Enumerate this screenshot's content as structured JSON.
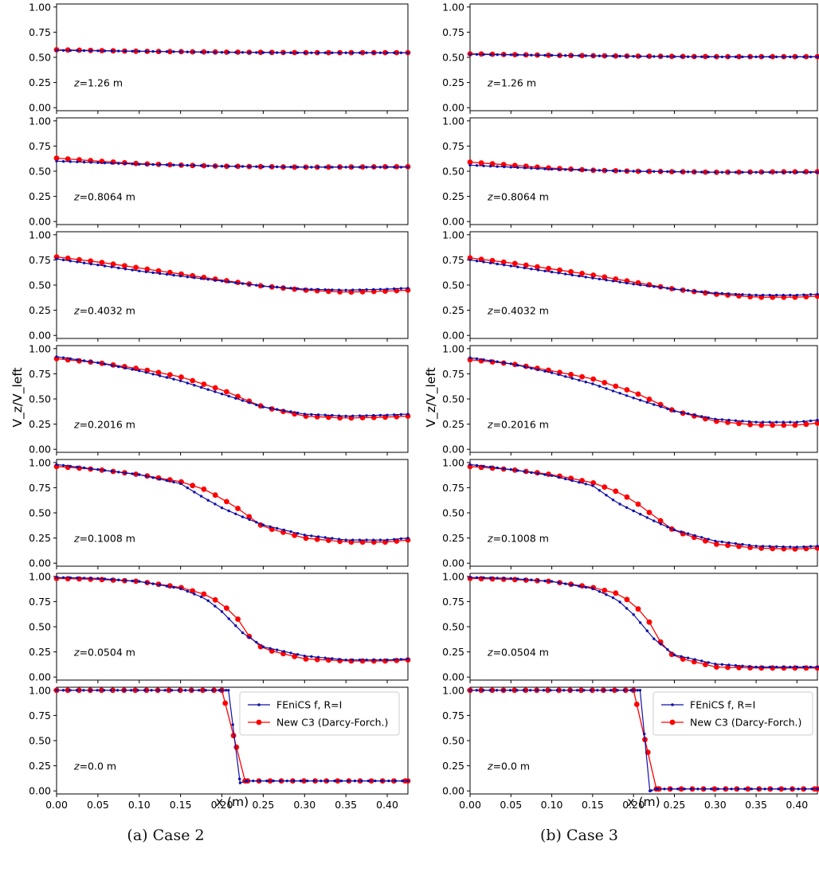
{
  "figure": {
    "ylabel": "V_z/V_left",
    "xlabel": "x (m)",
    "y_ticks": [
      "0.00",
      "0.25",
      "0.50",
      "0.75",
      "1.00"
    ],
    "x_ticks": [
      "0.00",
      "0.05",
      "0.10",
      "0.15",
      "0.20",
      "0.25",
      "0.30",
      "0.35",
      "0.40"
    ],
    "legend": [
      "FEniCS f, R=I",
      "New C3 (Darcy-Forch.)"
    ],
    "colors": {
      "fenics": "#1010a8",
      "c3": "#ff0000"
    }
  },
  "captions": {
    "a": "(a) Case 2",
    "b": "(b) Case 3"
  },
  "chart_data": [
    {
      "type": "line",
      "case": "(a) Case 2",
      "xlabel": "x (m)",
      "ylabel": "V_z/V_left",
      "xlim": [
        0,
        0.425
      ],
      "ylim": [
        -0.03,
        1.03
      ],
      "legend_position": "upper-right (bottom panel)",
      "panels": [
        {
          "label": "z=1.26 m",
          "fenics": [
            [
              0,
              0.57
            ],
            [
              0.1,
              0.56
            ],
            [
              0.2,
              0.55
            ],
            [
              0.3,
              0.545
            ],
            [
              0.425,
              0.545
            ]
          ],
          "c3": [
            [
              0,
              0.575
            ],
            [
              0.1,
              0.56
            ],
            [
              0.2,
              0.552
            ],
            [
              0.3,
              0.547
            ],
            [
              0.425,
              0.547
            ]
          ]
        },
        {
          "label": "z=0.8064 m",
          "fenics": [
            [
              0,
              0.6
            ],
            [
              0.05,
              0.585
            ],
            [
              0.1,
              0.57
            ],
            [
              0.15,
              0.56
            ],
            [
              0.2,
              0.55
            ],
            [
              0.3,
              0.54
            ],
            [
              0.425,
              0.54
            ]
          ],
          "c3": [
            [
              0,
              0.63
            ],
            [
              0.05,
              0.6
            ],
            [
              0.1,
              0.575
            ],
            [
              0.15,
              0.56
            ],
            [
              0.2,
              0.55
            ],
            [
              0.3,
              0.54
            ],
            [
              0.425,
              0.545
            ]
          ]
        },
        {
          "label": "z=0.4032 m",
          "fenics": [
            [
              0,
              0.76
            ],
            [
              0.05,
              0.7
            ],
            [
              0.1,
              0.64
            ],
            [
              0.15,
              0.59
            ],
            [
              0.2,
              0.54
            ],
            [
              0.25,
              0.49
            ],
            [
              0.3,
              0.46
            ],
            [
              0.35,
              0.45
            ],
            [
              0.4,
              0.46
            ],
            [
              0.425,
              0.47
            ]
          ],
          "c3": [
            [
              0,
              0.78
            ],
            [
              0.05,
              0.73
            ],
            [
              0.1,
              0.67
            ],
            [
              0.15,
              0.61
            ],
            [
              0.2,
              0.55
            ],
            [
              0.25,
              0.49
            ],
            [
              0.3,
              0.45
            ],
            [
              0.35,
              0.43
            ],
            [
              0.4,
              0.44
            ],
            [
              0.425,
              0.45
            ]
          ]
        },
        {
          "label": "z=0.2016 m",
          "fenics": [
            [
              0,
              0.92
            ],
            [
              0.05,
              0.86
            ],
            [
              0.1,
              0.78
            ],
            [
              0.15,
              0.68
            ],
            [
              0.2,
              0.55
            ],
            [
              0.25,
              0.42
            ],
            [
              0.3,
              0.35
            ],
            [
              0.35,
              0.33
            ],
            [
              0.4,
              0.34
            ],
            [
              0.425,
              0.35
            ]
          ],
          "c3": [
            [
              0,
              0.9
            ],
            [
              0.05,
              0.86
            ],
            [
              0.1,
              0.8
            ],
            [
              0.15,
              0.72
            ],
            [
              0.2,
              0.59
            ],
            [
              0.25,
              0.42
            ],
            [
              0.3,
              0.33
            ],
            [
              0.35,
              0.31
            ],
            [
              0.4,
              0.32
            ],
            [
              0.425,
              0.33
            ]
          ]
        },
        {
          "label": "z=0.1008 m",
          "fenics": [
            [
              0,
              0.98
            ],
            [
              0.05,
              0.93
            ],
            [
              0.1,
              0.88
            ],
            [
              0.15,
              0.79
            ],
            [
              0.18,
              0.64
            ],
            [
              0.2,
              0.55
            ],
            [
              0.225,
              0.46
            ],
            [
              0.25,
              0.38
            ],
            [
              0.3,
              0.28
            ],
            [
              0.35,
              0.23
            ],
            [
              0.4,
              0.23
            ],
            [
              0.425,
              0.25
            ]
          ],
          "c3": [
            [
              0,
              0.96
            ],
            [
              0.05,
              0.93
            ],
            [
              0.1,
              0.88
            ],
            [
              0.15,
              0.81
            ],
            [
              0.18,
              0.73
            ],
            [
              0.2,
              0.64
            ],
            [
              0.22,
              0.54
            ],
            [
              0.25,
              0.36
            ],
            [
              0.3,
              0.25
            ],
            [
              0.35,
              0.21
            ],
            [
              0.4,
              0.21
            ],
            [
              0.425,
              0.23
            ]
          ]
        },
        {
          "label": "z=0.0504 m",
          "fenics": [
            [
              0,
              0.99
            ],
            [
              0.05,
              0.98
            ],
            [
              0.1,
              0.95
            ],
            [
              0.15,
              0.88
            ],
            [
              0.18,
              0.78
            ],
            [
              0.2,
              0.65
            ],
            [
              0.225,
              0.44
            ],
            [
              0.25,
              0.3
            ],
            [
              0.3,
              0.21
            ],
            [
              0.35,
              0.17
            ],
            [
              0.4,
              0.17
            ],
            [
              0.425,
              0.18
            ]
          ],
          "c3": [
            [
              0,
              0.98
            ],
            [
              0.05,
              0.97
            ],
            [
              0.1,
              0.95
            ],
            [
              0.15,
              0.89
            ],
            [
              0.18,
              0.82
            ],
            [
              0.2,
              0.73
            ],
            [
              0.22,
              0.57
            ],
            [
              0.235,
              0.38
            ],
            [
              0.25,
              0.28
            ],
            [
              0.3,
              0.18
            ],
            [
              0.35,
              0.16
            ],
            [
              0.4,
              0.16
            ],
            [
              0.425,
              0.17
            ]
          ]
        },
        {
          "label": "z=0.0 m",
          "fenics": [
            [
              0,
              1.0
            ],
            [
              0.2,
              1.0
            ],
            [
              0.208,
              1.0
            ],
            [
              0.222,
              0.08
            ],
            [
              0.23,
              0.1
            ],
            [
              0.425,
              0.1
            ]
          ],
          "c3": [
            [
              0,
              1.0
            ],
            [
              0.2,
              1.0
            ],
            [
              0.214,
              0.55
            ],
            [
              0.228,
              0.1
            ],
            [
              0.425,
              0.1
            ]
          ]
        }
      ]
    },
    {
      "type": "line",
      "case": "(b) Case 3",
      "xlabel": "x (m)",
      "ylabel": "V_z/V_left",
      "xlim": [
        0,
        0.425
      ],
      "ylim": [
        -0.03,
        1.03
      ],
      "legend_position": "upper-right (bottom panel)",
      "panels": [
        {
          "label": "z=1.26 m",
          "fenics": [
            [
              0,
              0.53
            ],
            [
              0.1,
              0.52
            ],
            [
              0.2,
              0.51
            ],
            [
              0.3,
              0.505
            ],
            [
              0.425,
              0.505
            ]
          ],
          "c3": [
            [
              0,
              0.535
            ],
            [
              0.1,
              0.52
            ],
            [
              0.2,
              0.512
            ],
            [
              0.3,
              0.507
            ],
            [
              0.425,
              0.507
            ]
          ]
        },
        {
          "label": "z=0.8064 m",
          "fenics": [
            [
              0,
              0.56
            ],
            [
              0.05,
              0.54
            ],
            [
              0.1,
              0.52
            ],
            [
              0.15,
              0.51
            ],
            [
              0.2,
              0.5
            ],
            [
              0.3,
              0.49
            ],
            [
              0.425,
              0.49
            ]
          ],
          "c3": [
            [
              0,
              0.59
            ],
            [
              0.05,
              0.56
            ],
            [
              0.1,
              0.53
            ],
            [
              0.15,
              0.51
            ],
            [
              0.2,
              0.5
            ],
            [
              0.3,
              0.49
            ],
            [
              0.425,
              0.495
            ]
          ]
        },
        {
          "label": "z=0.4032 m",
          "fenics": [
            [
              0,
              0.75
            ],
            [
              0.05,
              0.69
            ],
            [
              0.1,
              0.63
            ],
            [
              0.15,
              0.57
            ],
            [
              0.2,
              0.51
            ],
            [
              0.25,
              0.46
            ],
            [
              0.3,
              0.42
            ],
            [
              0.35,
              0.4
            ],
            [
              0.4,
              0.4
            ],
            [
              0.425,
              0.41
            ]
          ],
          "c3": [
            [
              0,
              0.77
            ],
            [
              0.05,
              0.72
            ],
            [
              0.1,
              0.66
            ],
            [
              0.15,
              0.6
            ],
            [
              0.2,
              0.53
            ],
            [
              0.25,
              0.46
            ],
            [
              0.3,
              0.41
            ],
            [
              0.35,
              0.38
            ],
            [
              0.4,
              0.38
            ],
            [
              0.425,
              0.39
            ]
          ]
        },
        {
          "label": "z=0.2016 m",
          "fenics": [
            [
              0,
              0.91
            ],
            [
              0.05,
              0.85
            ],
            [
              0.1,
              0.76
            ],
            [
              0.15,
              0.65
            ],
            [
              0.2,
              0.51
            ],
            [
              0.25,
              0.38
            ],
            [
              0.3,
              0.3
            ],
            [
              0.35,
              0.27
            ],
            [
              0.4,
              0.27
            ],
            [
              0.425,
              0.29
            ]
          ],
          "c3": [
            [
              0,
              0.89
            ],
            [
              0.05,
              0.85
            ],
            [
              0.1,
              0.78
            ],
            [
              0.15,
              0.7
            ],
            [
              0.2,
              0.57
            ],
            [
              0.25,
              0.38
            ],
            [
              0.3,
              0.28
            ],
            [
              0.35,
              0.24
            ],
            [
              0.4,
              0.24
            ],
            [
              0.425,
              0.26
            ]
          ]
        },
        {
          "label": "z=0.1008 m",
          "fenics": [
            [
              0,
              0.98
            ],
            [
              0.05,
              0.93
            ],
            [
              0.1,
              0.87
            ],
            [
              0.15,
              0.77
            ],
            [
              0.18,
              0.6
            ],
            [
              0.2,
              0.52
            ],
            [
              0.225,
              0.42
            ],
            [
              0.25,
              0.33
            ],
            [
              0.3,
              0.22
            ],
            [
              0.35,
              0.17
            ],
            [
              0.4,
              0.16
            ],
            [
              0.425,
              0.17
            ]
          ],
          "c3": [
            [
              0,
              0.96
            ],
            [
              0.05,
              0.93
            ],
            [
              0.1,
              0.88
            ],
            [
              0.15,
              0.8
            ],
            [
              0.18,
              0.71
            ],
            [
              0.2,
              0.62
            ],
            [
              0.22,
              0.5
            ],
            [
              0.25,
              0.32
            ],
            [
              0.3,
              0.19
            ],
            [
              0.35,
              0.15
            ],
            [
              0.4,
              0.14
            ],
            [
              0.425,
              0.15
            ]
          ]
        },
        {
          "label": "z=0.0504 m",
          "fenics": [
            [
              0,
              0.99
            ],
            [
              0.05,
              0.98
            ],
            [
              0.1,
              0.95
            ],
            [
              0.15,
              0.88
            ],
            [
              0.18,
              0.77
            ],
            [
              0.2,
              0.62
            ],
            [
              0.225,
              0.38
            ],
            [
              0.25,
              0.22
            ],
            [
              0.3,
              0.13
            ],
            [
              0.35,
              0.1
            ],
            [
              0.4,
              0.1
            ],
            [
              0.425,
              0.1
            ]
          ],
          "c3": [
            [
              0,
              0.98
            ],
            [
              0.05,
              0.97
            ],
            [
              0.1,
              0.95
            ],
            [
              0.15,
              0.89
            ],
            [
              0.18,
              0.83
            ],
            [
              0.2,
              0.73
            ],
            [
              0.22,
              0.54
            ],
            [
              0.235,
              0.32
            ],
            [
              0.25,
              0.2
            ],
            [
              0.3,
              0.1
            ],
            [
              0.35,
              0.09
            ],
            [
              0.4,
              0.09
            ],
            [
              0.425,
              0.09
            ]
          ]
        },
        {
          "label": "z=0.0 m",
          "fenics": [
            [
              0,
              1.0
            ],
            [
              0.2,
              1.0
            ],
            [
              0.208,
              1.0
            ],
            [
              0.22,
              0.0
            ],
            [
              0.228,
              0.02
            ],
            [
              0.425,
              0.02
            ]
          ],
          "c3": [
            [
              0,
              1.0
            ],
            [
              0.2,
              1.0
            ],
            [
              0.214,
              0.51
            ],
            [
              0.228,
              0.02
            ],
            [
              0.425,
              0.02
            ]
          ]
        }
      ]
    }
  ]
}
